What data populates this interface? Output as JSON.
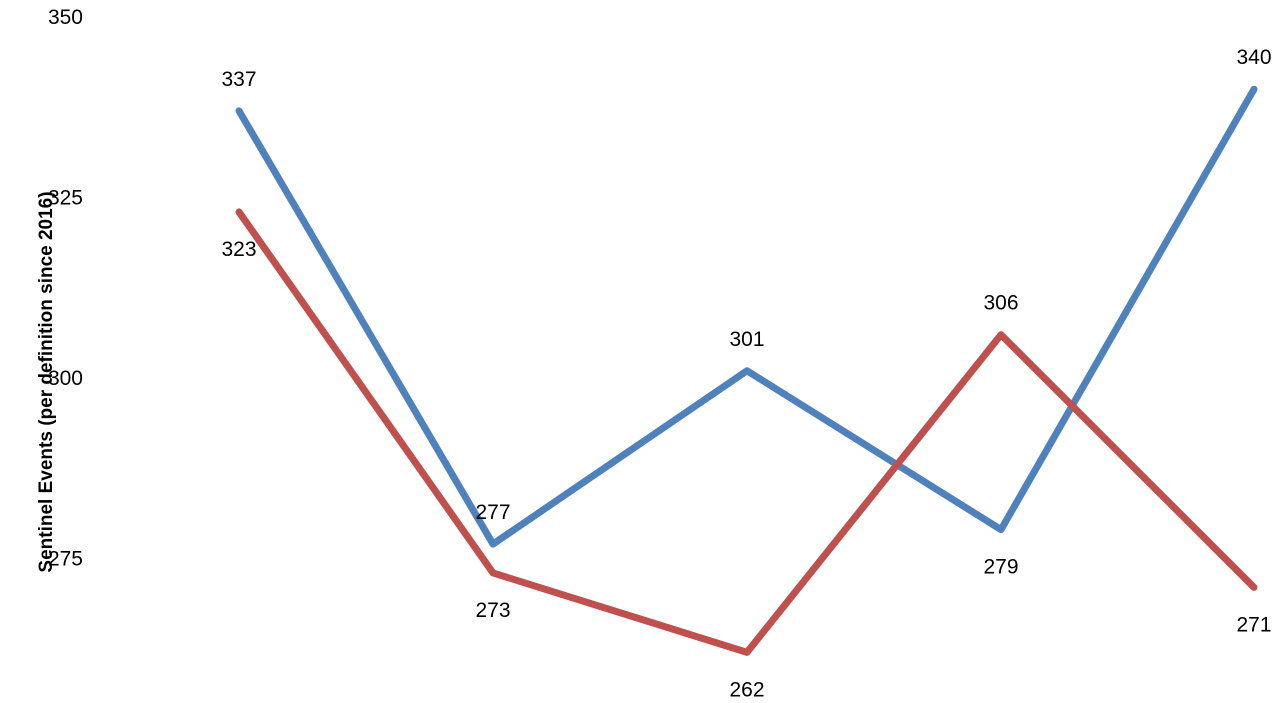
{
  "chart_data": {
    "type": "line",
    "title": "",
    "xlabel": "",
    "ylabel": "Sentinel Events (per definition since 2016)",
    "ylim": [
      250,
      350
    ],
    "yticks": [
      350,
      325,
      300,
      275
    ],
    "grid": false,
    "x_count": 5,
    "series": [
      {
        "values": [
          337,
          277,
          301,
          279,
          340
        ],
        "color": "#4f81bd"
      },
      {
        "values": [
          323,
          273,
          262,
          306,
          271
        ],
        "color": "#c0504d"
      }
    ]
  }
}
